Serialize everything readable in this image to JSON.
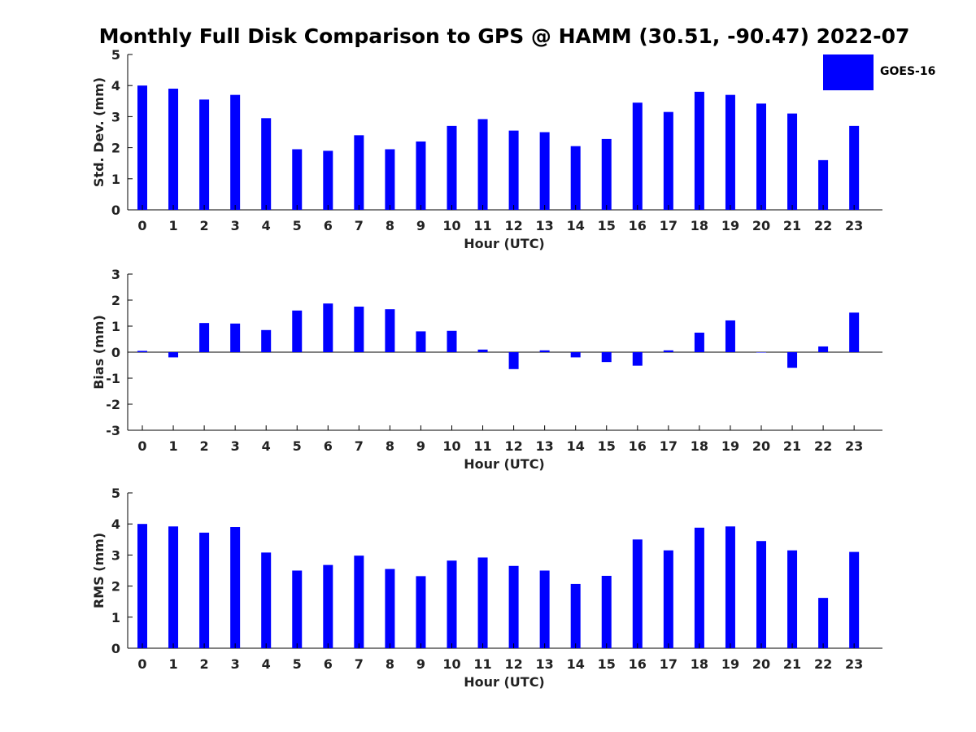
{
  "title": "Monthly Full Disk Comparison to GPS @ HAMM (30.51, -90.47) 2022-07",
  "legend": {
    "label": "GOES-16",
    "color": "#0000ff",
    "position": "top-right"
  },
  "colors": {
    "bar": "#0000ff",
    "axis": "#000000",
    "text": "#222222"
  },
  "chart_data": [
    {
      "type": "bar",
      "ylabel": "Std. Dev. (mm)",
      "xlabel": "Hour (UTC)",
      "ylim": [
        0,
        5
      ],
      "yticks": [
        "0",
        "1",
        "2",
        "3",
        "4",
        "5"
      ],
      "categories": [
        "0",
        "1",
        "2",
        "3",
        "4",
        "5",
        "6",
        "7",
        "8",
        "9",
        "10",
        "11",
        "12",
        "13",
        "14",
        "15",
        "16",
        "17",
        "18",
        "19",
        "20",
        "21",
        "22",
        "23"
      ],
      "series": [
        {
          "name": "GOES-16",
          "values": [
            4.0,
            3.9,
            3.55,
            3.7,
            2.95,
            1.95,
            1.9,
            2.4,
            1.95,
            2.2,
            2.7,
            2.92,
            2.55,
            2.5,
            2.05,
            2.28,
            3.45,
            3.15,
            3.8,
            3.7,
            3.42,
            3.1,
            1.6,
            2.7
          ]
        }
      ],
      "grid": false
    },
    {
      "type": "bar",
      "ylabel": "Bias (mm)",
      "xlabel": "Hour (UTC)",
      "ylim": [
        -3,
        3
      ],
      "yticks": [
        "-3",
        "-2",
        "-1",
        "0",
        "1",
        "2",
        "3"
      ],
      "categories": [
        "0",
        "1",
        "2",
        "3",
        "4",
        "5",
        "6",
        "7",
        "8",
        "9",
        "10",
        "11",
        "12",
        "13",
        "14",
        "15",
        "16",
        "17",
        "18",
        "19",
        "20",
        "21",
        "22",
        "23"
      ],
      "series": [
        {
          "name": "GOES-16",
          "values": [
            0.05,
            -0.2,
            1.12,
            1.1,
            0.85,
            1.6,
            1.87,
            1.75,
            1.65,
            0.8,
            0.82,
            0.1,
            -0.65,
            0.07,
            -0.2,
            -0.38,
            -0.52,
            0.07,
            0.75,
            1.22,
            0.0,
            -0.6,
            0.22,
            1.52
          ]
        }
      ],
      "grid": false
    },
    {
      "type": "bar",
      "ylabel": "RMS (mm)",
      "xlabel": "Hour (UTC)",
      "ylim": [
        0,
        5
      ],
      "yticks": [
        "0",
        "1",
        "2",
        "3",
        "4",
        "5"
      ],
      "categories": [
        "0",
        "1",
        "2",
        "3",
        "4",
        "5",
        "6",
        "7",
        "8",
        "9",
        "10",
        "11",
        "12",
        "13",
        "14",
        "15",
        "16",
        "17",
        "18",
        "19",
        "20",
        "21",
        "22",
        "23"
      ],
      "series": [
        {
          "name": "GOES-16",
          "values": [
            4.0,
            3.92,
            3.72,
            3.9,
            3.08,
            2.5,
            2.68,
            2.98,
            2.55,
            2.32,
            2.82,
            2.92,
            2.65,
            2.5,
            2.07,
            2.33,
            3.5,
            3.15,
            3.88,
            3.92,
            3.45,
            3.15,
            1.62,
            3.1
          ]
        }
      ],
      "grid": false
    }
  ]
}
